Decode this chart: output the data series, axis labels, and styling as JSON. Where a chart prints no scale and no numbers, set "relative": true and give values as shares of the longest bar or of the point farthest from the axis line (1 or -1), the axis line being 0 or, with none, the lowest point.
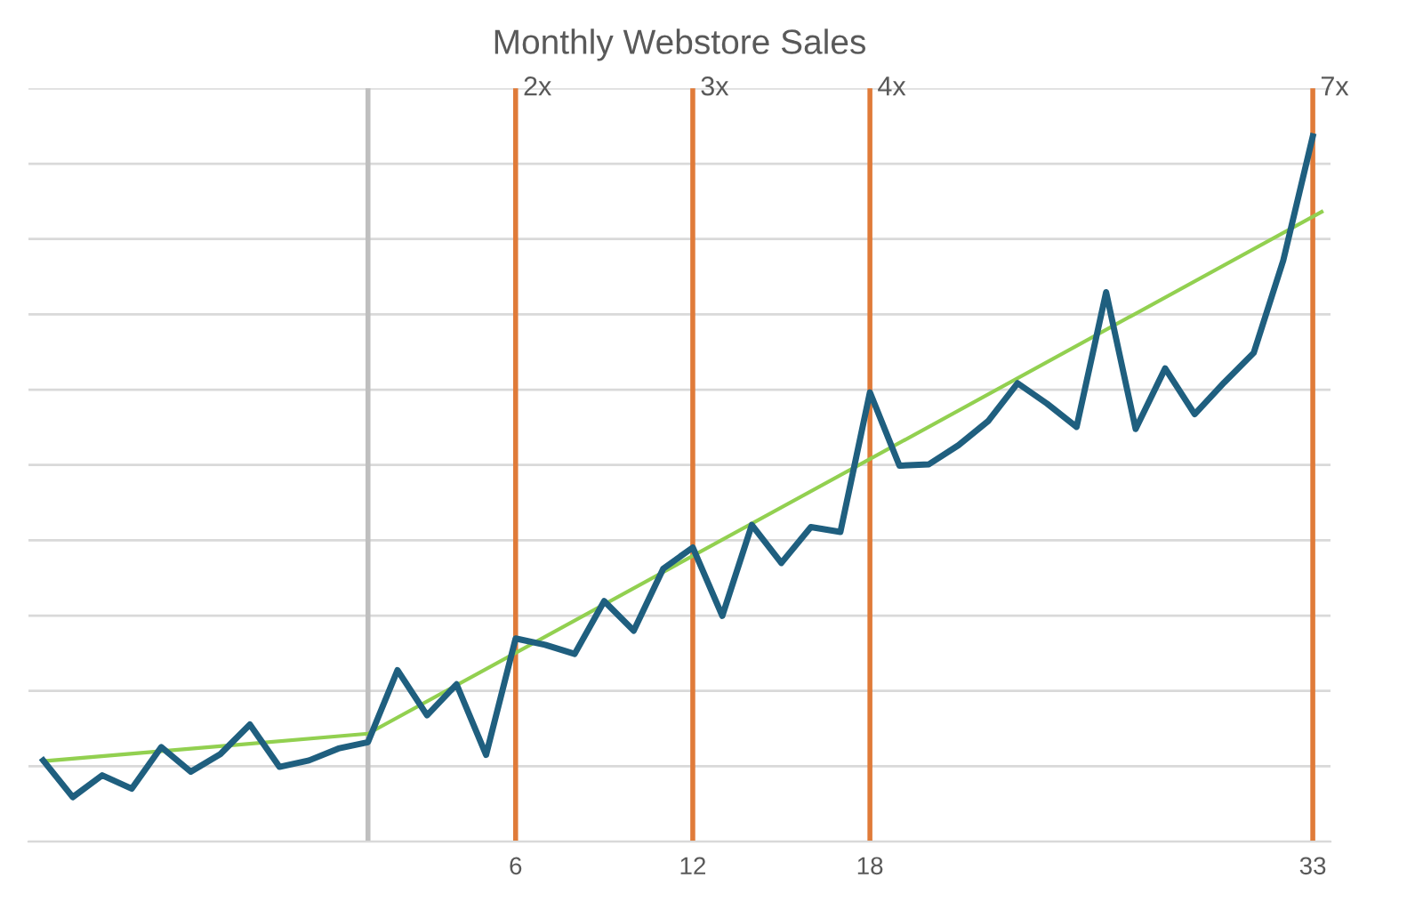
{
  "chart_data": {
    "type": "line",
    "title": "Monthly Webstore Sales",
    "relative": true,
    "grid": "y",
    "marker": "none",
    "line_style": "solid",
    "xlim": [
      -10.5,
      33.6
    ],
    "xticks": [
      6,
      12,
      18,
      33
    ],
    "series": [
      {
        "color": "#1f5f7f",
        "x": [
          -10,
          -9,
          -8,
          -7,
          -6,
          -5,
          -4,
          -3,
          -2,
          -1,
          0,
          1,
          2,
          3,
          4,
          5,
          6,
          7,
          8,
          9,
          10,
          11,
          12,
          13,
          14,
          15,
          16,
          17,
          18,
          19,
          20,
          21,
          22,
          23,
          24,
          25,
          26,
          27,
          28,
          29,
          30,
          31,
          32,
          33
        ],
        "values": [
          0.115,
          0.063,
          0.094,
          0.075,
          0.134,
          0.099,
          0.124,
          0.166,
          0.106,
          0.115,
          0.132,
          0.141,
          0.243,
          0.179,
          0.223,
          0.123,
          0.288,
          0.279,
          0.266,
          0.341,
          0.299,
          0.387,
          0.417,
          0.32,
          0.449,
          0.395,
          0.446,
          0.439,
          0.637,
          0.533,
          0.535,
          0.562,
          0.596,
          0.65,
          0.621,
          0.588,
          0.779,
          0.585,
          0.671,
          0.606,
          0.651,
          0.693,
          0.824,
          1.0
        ]
      },
      {
        "color": "#92d050",
        "x": [
          -10,
          1,
          33.3
        ],
        "values": [
          0.114,
          0.153,
          0.893
        ]
      }
    ],
    "ref_lines": [
      {
        "axis": "x",
        "value": 1,
        "color": "#bfbfbf"
      },
      {
        "axis": "x",
        "value": 6,
        "label": "2x",
        "color": "#e07b39"
      },
      {
        "axis": "x",
        "value": 12,
        "label": "3x",
        "color": "#e07b39"
      },
      {
        "axis": "x",
        "value": 18,
        "label": "4x",
        "color": "#e07b39"
      },
      {
        "axis": "x",
        "value": 33,
        "label": "7x",
        "color": "#e07b39"
      }
    ]
  }
}
